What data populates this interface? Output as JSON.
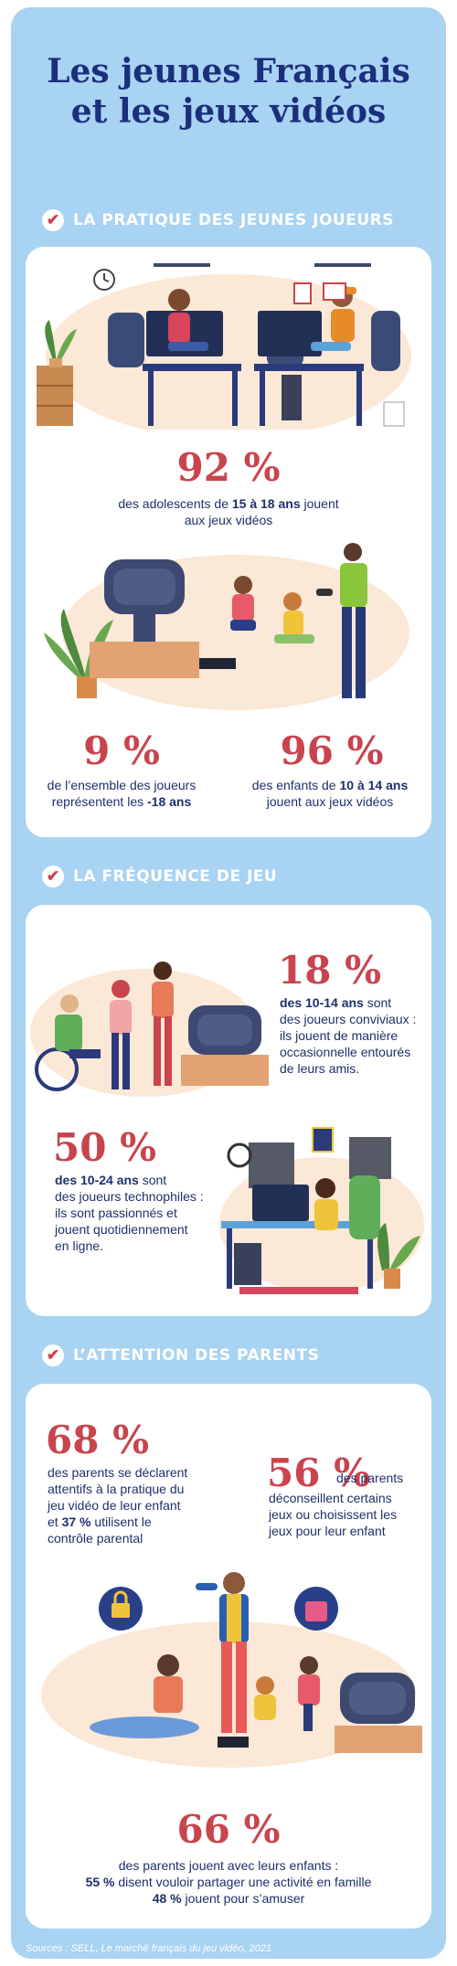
{
  "title": {
    "line1": "Les jeunes Français",
    "line2": "et les jeux vidéos"
  },
  "sections": [
    {
      "label": "LA PRATIQUE DES JEUNES JOUEURS",
      "check": "✔"
    },
    {
      "label": "LA FRÉQUENCE DE JEU",
      "check": "✔"
    },
    {
      "label": "L’ATTENTION DES PARENTS",
      "check": "✔"
    }
  ],
  "stats": {
    "s92": {
      "value": "92 %",
      "p1": "des adolescents de ",
      "b1": "15 à 18 ans",
      "p2": " jouent",
      "line2": "aux jeux vidéos"
    },
    "s9": {
      "value": "9 %",
      "line1": "de l’ensemble des joueurs",
      "p1": "représentent les ",
      "b1": "-18 ans"
    },
    "s96": {
      "value": "96 %",
      "p1": "des enfants de ",
      "b1": "10 à 14 ans",
      "line2": "jouent aux jeux vidéos"
    },
    "s18": {
      "value": "18 %",
      "b1": "des 10-14 ans",
      "p1": " sont",
      "l2": "des joueurs conviviaux :",
      "l3": "ils jouent de manière",
      "l4": "occasionnelle entourés",
      "l5": "de leurs amis."
    },
    "s50": {
      "value": "50 %",
      "b1": "des 10-24 ans",
      "p1": " sont",
      "l2": "des joueurs technophiles :",
      "l3": "ils sont passionnés et",
      "l4": "jouent quotidiennement",
      "l5": "en ligne."
    },
    "s68": {
      "value": "68 %",
      "l1": "des parents se déclarent",
      "l2": "attentifs à la pratique du",
      "l3": "jeu vidéo de leur enfant",
      "p1": "et ",
      "b1": "37 %",
      "p2": " utilisent le",
      "l5": "contrôle parental"
    },
    "s56": {
      "value": "56 %",
      "l1": "des parents",
      "l2": "déconseillent certains",
      "l3": "jeux ou choisissent les",
      "l4": "jeux pour leur enfant"
    },
    "s66": {
      "value": "66 %",
      "l1": "des parents jouent avec leurs enfants :",
      "b1": "55 %",
      "p1": " disent vouloir partager une activité en famille",
      "b2": "48 %",
      "p2": " jouent pour s’amuser"
    }
  },
  "source": "Sources : SELL, Le marché français du jeu vidéo, 2021",
  "colors": {
    "accent_red": "#c9444d",
    "navy": "#1b2f7c",
    "background": "#a9d3f2"
  }
}
